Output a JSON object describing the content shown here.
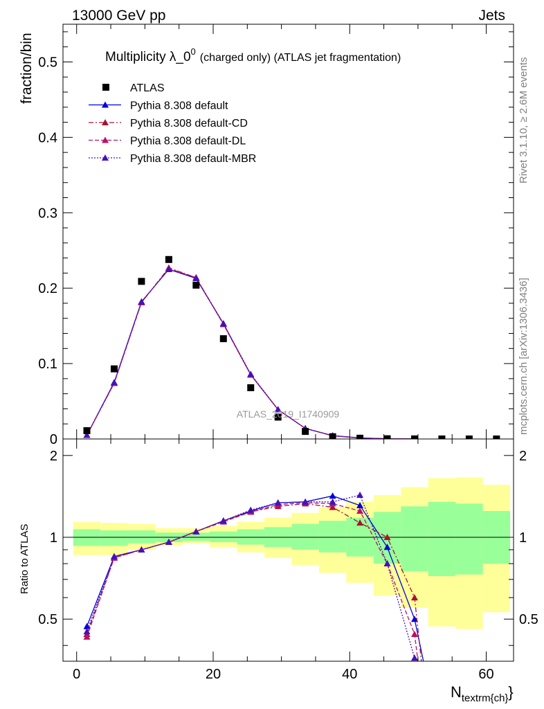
{
  "header": {
    "left": "13000 GeV pp",
    "right": "Jets"
  },
  "side_labels": {
    "rivet": "Rivet 3.1.10, ≥ 2.6M events",
    "mcplots": "mcplots.cern.ch [arXiv:1306.3436]"
  },
  "watermark": "ATLAS_2019_I1740909",
  "chart_data": [
    {
      "type": "scatter",
      "title": "Multiplicity λ_0",
      "title_sup": "0",
      "title_suffix": "(charged only) (ATLAS jet fragmentation)",
      "ylabel": "fraction/bin",
      "xlabel": "N",
      "xlabel_sub": "textrm{ch}",
      "xlabel_tail": "}",
      "xlim": [
        -2,
        64
      ],
      "ylim": [
        0,
        0.55
      ],
      "x_ticks": [
        0,
        20,
        40,
        60
      ],
      "y_ticks": [
        0,
        0.1,
        0.2,
        0.3,
        0.4,
        0.5
      ],
      "y_tick_labels": [
        "0",
        "0.1",
        "0.2",
        "0.3",
        "0.4",
        "0.5"
      ],
      "legend_position": "top-left",
      "data": {
        "name": "ATLAS",
        "x": [
          1.5,
          5.5,
          9.5,
          13.5,
          17.5,
          21.5,
          25.5,
          29.5,
          33.5,
          37.5,
          41.5,
          45.5,
          49.5,
          53.5,
          57.5,
          61.5
        ],
        "y": [
          0.011,
          0.093,
          0.209,
          0.238,
          0.204,
          0.133,
          0.068,
          0.029,
          0.01,
          0.003,
          0.001,
          0.0003,
          0.0001,
          3e-05,
          1e-05,
          3e-06
        ]
      },
      "series": [
        {
          "name": "Pythia 8.308 default",
          "color": "#0000dd",
          "dash": "solid",
          "x": [
            1.5,
            5.5,
            9.5,
            13.5,
            17.5,
            21.5,
            25.5,
            29.5,
            33.5,
            37.5,
            41.5,
            45.5,
            49.5
          ],
          "y": [
            0.005,
            0.075,
            0.182,
            0.225,
            0.213,
            0.153,
            0.085,
            0.039,
            0.014,
            0.0045,
            0.0014,
            0.0003,
            5e-05
          ]
        },
        {
          "name": "Pythia 8.308 default-CD",
          "color": "#aa1133",
          "dash": "dashdot",
          "x": [
            1.5,
            5.5,
            9.5,
            13.5,
            17.5,
            21.5,
            25.5,
            29.5,
            33.5,
            37.5,
            41.5,
            45.5,
            49.5
          ],
          "y": [
            0.005,
            0.074,
            0.181,
            0.227,
            0.214,
            0.153,
            0.085,
            0.039,
            0.014,
            0.0042,
            0.0011,
            0.0003,
            6e-05
          ]
        },
        {
          "name": "Pythia 8.308 default-DL",
          "color": "#bb1166",
          "dash": "dashed",
          "x": [
            1.5,
            5.5,
            9.5,
            13.5,
            17.5,
            21.5,
            25.5,
            29.5,
            33.5,
            37.5,
            41.5,
            45.5,
            49.5
          ],
          "y": [
            0.005,
            0.074,
            0.181,
            0.226,
            0.214,
            0.152,
            0.085,
            0.039,
            0.014,
            0.0042,
            0.0012,
            0.0003,
            5e-05
          ]
        },
        {
          "name": "Pythia 8.308 default-MBR",
          "color": "#4411bb",
          "dash": "dotted",
          "x": [
            1.5,
            5.5,
            9.5,
            13.5,
            17.5,
            21.5,
            25.5,
            29.5,
            33.5,
            37.5,
            41.5,
            45.5,
            49.5
          ],
          "y": [
            0.005,
            0.075,
            0.182,
            0.225,
            0.213,
            0.153,
            0.086,
            0.039,
            0.014,
            0.0044,
            0.0013,
            0.0002,
            4e-05
          ]
        }
      ]
    },
    {
      "type": "scatter",
      "ylabel": "Ratio to ATLAS",
      "xlim": [
        -2,
        64
      ],
      "ylim": [
        0.35,
        2.3
      ],
      "y_ticks": [
        0.5,
        1,
        2
      ],
      "y_tick_labels": [
        "0.5",
        "1",
        "2"
      ],
      "reference_line": 1,
      "bands": {
        "edges": [
          -0.5,
          3.5,
          7.5,
          11.5,
          15.5,
          19.5,
          23.5,
          27.5,
          31.5,
          35.5,
          39.5,
          43.5,
          47.5,
          51.5,
          55.5,
          59.5,
          63.5
        ],
        "inner": [
          [
            0.93,
            1.07
          ],
          [
            0.93,
            1.06
          ],
          [
            0.95,
            1.06
          ],
          [
            0.96,
            1.04
          ],
          [
            0.97,
            1.04
          ],
          [
            0.96,
            1.05
          ],
          [
            0.94,
            1.07
          ],
          [
            0.92,
            1.09
          ],
          [
            0.9,
            1.12
          ],
          [
            0.88,
            1.15
          ],
          [
            0.85,
            1.18
          ],
          [
            0.8,
            1.24
          ],
          [
            0.75,
            1.3
          ],
          [
            0.72,
            1.35
          ],
          [
            0.73,
            1.33
          ],
          [
            0.8,
            1.25
          ]
        ],
        "outer": [
          [
            0.86,
            1.14
          ],
          [
            0.86,
            1.13
          ],
          [
            0.9,
            1.12
          ],
          [
            0.93,
            1.08
          ],
          [
            0.95,
            1.08
          ],
          [
            0.92,
            1.1
          ],
          [
            0.88,
            1.14
          ],
          [
            0.84,
            1.18
          ],
          [
            0.79,
            1.23
          ],
          [
            0.74,
            1.29
          ],
          [
            0.68,
            1.35
          ],
          [
            0.61,
            1.43
          ],
          [
            0.55,
            1.53
          ],
          [
            0.47,
            1.65
          ],
          [
            0.46,
            1.66
          ],
          [
            0.53,
            1.56
          ]
        ]
      },
      "series": [
        {
          "name": "Pythia 8.308 default",
          "x": [
            1.5,
            5.5,
            9.5,
            13.5,
            17.5,
            21.5,
            25.5,
            29.5,
            33.5,
            37.5,
            41.5,
            45.5,
            49.5,
            50.8
          ],
          "y": [
            0.47,
            0.85,
            0.9,
            0.96,
            1.05,
            1.15,
            1.25,
            1.34,
            1.35,
            1.42,
            1.31,
            0.92,
            0.5,
            0.35
          ]
        },
        {
          "name": "Pythia 8.308 default-CD",
          "x": [
            1.5,
            5.5,
            9.5,
            13.5,
            17.5,
            21.5,
            25.5,
            29.5,
            33.5,
            37.5,
            41.5,
            45.5,
            49.5,
            50.5
          ],
          "y": [
            0.44,
            0.84,
            0.9,
            0.96,
            1.05,
            1.15,
            1.24,
            1.3,
            1.33,
            1.29,
            1.13,
            1.0,
            0.6,
            0.35
          ]
        },
        {
          "name": "Pythia 8.308 default-DL",
          "x": [
            1.5,
            5.5,
            9.5,
            13.5,
            17.5,
            21.5,
            25.5,
            29.5,
            33.5,
            37.5,
            41.5,
            45.5,
            49.5,
            50.0
          ],
          "y": [
            0.43,
            0.84,
            0.9,
            0.96,
            1.05,
            1.14,
            1.24,
            1.32,
            1.34,
            1.33,
            1.25,
            0.8,
            0.44,
            0.35
          ]
        },
        {
          "name": "Pythia 8.308 default-MBR",
          "x": [
            1.5,
            5.5,
            9.5,
            13.5,
            17.5,
            21.5,
            25.5,
            29.5,
            33.5,
            37.5,
            41.5,
            45.5,
            49.5
          ],
          "y": [
            0.45,
            0.85,
            0.9,
            0.96,
            1.05,
            1.15,
            1.26,
            1.34,
            1.35,
            1.35,
            1.43,
            0.8,
            0.36
          ]
        }
      ]
    }
  ]
}
